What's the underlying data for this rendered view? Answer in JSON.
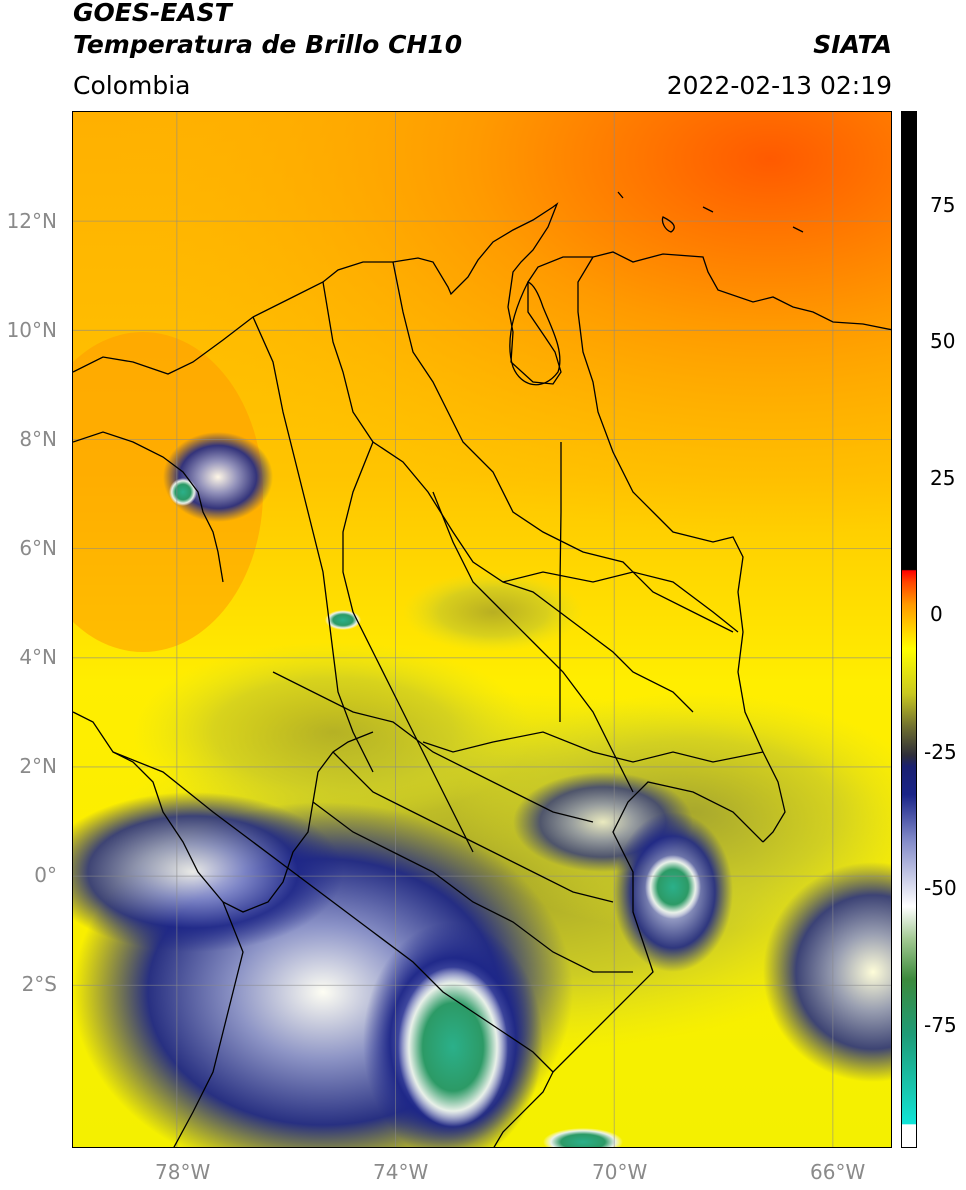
{
  "header": {
    "title_line1": "GOES-EAST",
    "title_line2": "Temperatura de Brillo CH10",
    "source": "SIATA",
    "region": "Colombia",
    "datetime": "2022-02-13 02:19"
  },
  "map": {
    "lon_range": [
      -79.9,
      -64.9
    ],
    "lat_range": [
      -5.0,
      14.0
    ],
    "lon_ticks": [
      {
        "value": -78,
        "label": "78°W"
      },
      {
        "value": -74,
        "label": "74°W"
      },
      {
        "value": -70,
        "label": "70°W"
      },
      {
        "value": -66,
        "label": "66°W"
      }
    ],
    "lat_ticks": [
      {
        "value": 12,
        "label": "12°N"
      },
      {
        "value": 10,
        "label": "10°N"
      },
      {
        "value": 8,
        "label": "8°N"
      },
      {
        "value": 6,
        "label": "6°N"
      },
      {
        "value": 4,
        "label": "4°N"
      },
      {
        "value": 2,
        "label": "2°N"
      },
      {
        "value": 0,
        "label": "0°"
      },
      {
        "value": -2,
        "label": "2°S"
      }
    ],
    "gridlines": true,
    "warm_color": "#ff7a00",
    "cold_color": "#1f2a8c"
  },
  "colorbar": {
    "range": [
      -95,
      90
    ],
    "ticks": [
      {
        "value": 75,
        "label": "75"
      },
      {
        "value": 50,
        "label": "50"
      },
      {
        "value": 25,
        "label": "25"
      },
      {
        "value": 0,
        "label": "0"
      },
      {
        "value": -25,
        "label": "-25"
      },
      {
        "value": -50,
        "label": "-50"
      },
      {
        "value": -75,
        "label": "-75"
      }
    ],
    "stops": [
      {
        "v": -95,
        "color": "#ffffff"
      },
      {
        "v": -91,
        "color": "#ffffff"
      },
      {
        "v": -90.9,
        "color": "#10e4d8"
      },
      {
        "v": -85,
        "color": "#18c8b0"
      },
      {
        "v": -75,
        "color": "#1e9c78"
      },
      {
        "v": -65,
        "color": "#3c8a3c"
      },
      {
        "v": -58,
        "color": "#a0c890"
      },
      {
        "v": -52,
        "color": "#ffffff"
      },
      {
        "v": -40,
        "color": "#8088c8"
      },
      {
        "v": -32,
        "color": "#1a2488"
      },
      {
        "v": -27,
        "color": "#1a2070"
      },
      {
        "v": -25,
        "color": "#2e2e3a"
      },
      {
        "v": -20,
        "color": "#6e6e30"
      },
      {
        "v": -14,
        "color": "#c8c820"
      },
      {
        "v": -6,
        "color": "#ffff00"
      },
      {
        "v": -2,
        "color": "#ffcc00"
      },
      {
        "v": 2,
        "color": "#ff9900"
      },
      {
        "v": 6,
        "color": "#ff4400"
      },
      {
        "v": 8,
        "color": "#ff0000"
      },
      {
        "v": 8.2,
        "color": "#000000"
      },
      {
        "v": 90,
        "color": "#000000"
      }
    ]
  }
}
